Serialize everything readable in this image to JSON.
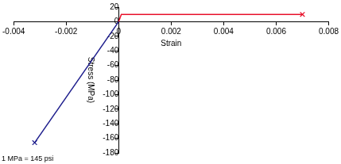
{
  "chart_data": {
    "type": "line",
    "x_label": "Strain",
    "y_label": "Stress (MPa)",
    "annotations": [
      "1 MPa = 145 psi"
    ],
    "series": [
      {
        "color": "#1c1c8c",
        "marker": "x",
        "x": [
          0,
          -0.0032
        ],
        "values": [
          0,
          -166
        ]
      },
      {
        "color": "#e8102a",
        "marker": "x",
        "x": [
          0,
          0.0001,
          0.007
        ],
        "values": [
          0,
          10,
          10
        ]
      }
    ],
    "xlim": [
      -0.004,
      0.008
    ],
    "xticks": [
      -0.004,
      -0.002,
      0,
      0.002,
      0.004,
      0.006,
      0.008
    ],
    "ylim": [
      -180,
      20
    ],
    "yticks": [
      -180,
      -160,
      -140,
      -120,
      -100,
      -80,
      -60,
      -40,
      -20,
      0,
      20
    ],
    "grid": false
  }
}
